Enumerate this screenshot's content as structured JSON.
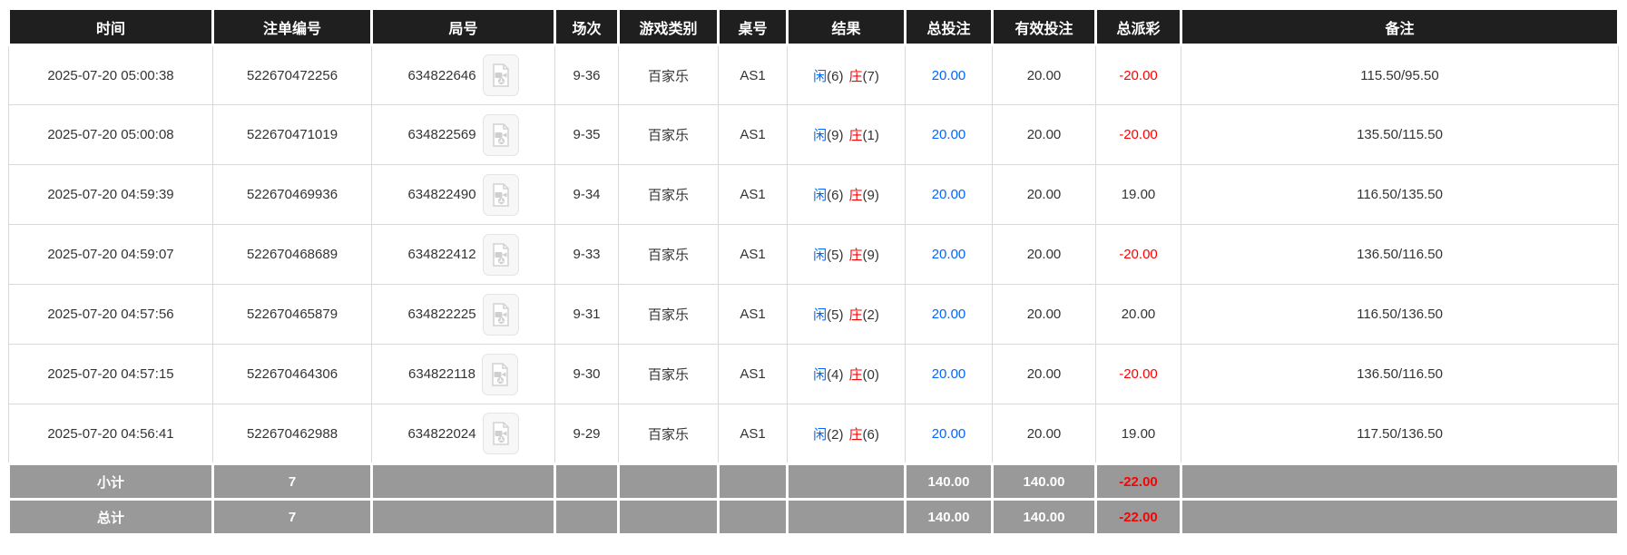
{
  "colors": {
    "header_bg": "#1f1f1f",
    "footer_bg": "#999999",
    "bet_blue": "#0066ff",
    "loss_red": "#ff0000"
  },
  "icons": {
    "round_video": "video-replay-icon"
  },
  "table": {
    "columns": [
      "时间",
      "注单编号",
      "局号",
      "场次",
      "游戏类别",
      "桌号",
      "结果",
      "总投注",
      "有效投注",
      "总派彩",
      "备注"
    ],
    "result_labels": {
      "player": "闲",
      "banker": "庄"
    },
    "rows": [
      {
        "time": "2025-07-20 05:00:38",
        "bet_no": "522670472256",
        "round_no": "634822646",
        "session": "9-36",
        "game": "百家乐",
        "table_no": "AS1",
        "player": "(6)",
        "banker": "(7)",
        "total_bet": "20.00",
        "valid_bet": "20.00",
        "payout": "-20.00",
        "remark": "115.50/95.50"
      },
      {
        "time": "2025-07-20 05:00:08",
        "bet_no": "522670471019",
        "round_no": "634822569",
        "session": "9-35",
        "game": "百家乐",
        "table_no": "AS1",
        "player": "(9)",
        "banker": "(1)",
        "total_bet": "20.00",
        "valid_bet": "20.00",
        "payout": "-20.00",
        "remark": "135.50/115.50"
      },
      {
        "time": "2025-07-20 04:59:39",
        "bet_no": "522670469936",
        "round_no": "634822490",
        "session": "9-34",
        "game": "百家乐",
        "table_no": "AS1",
        "player": "(6)",
        "banker": "(9)",
        "total_bet": "20.00",
        "valid_bet": "20.00",
        "payout": "19.00",
        "remark": "116.50/135.50"
      },
      {
        "time": "2025-07-20 04:59:07",
        "bet_no": "522670468689",
        "round_no": "634822412",
        "session": "9-33",
        "game": "百家乐",
        "table_no": "AS1",
        "player": "(5)",
        "banker": "(9)",
        "total_bet": "20.00",
        "valid_bet": "20.00",
        "payout": "-20.00",
        "remark": "136.50/116.50"
      },
      {
        "time": "2025-07-20 04:57:56",
        "bet_no": "522670465879",
        "round_no": "634822225",
        "session": "9-31",
        "game": "百家乐",
        "table_no": "AS1",
        "player": "(5)",
        "banker": "(2)",
        "total_bet": "20.00",
        "valid_bet": "20.00",
        "payout": "20.00",
        "remark": "116.50/136.50"
      },
      {
        "time": "2025-07-20 04:57:15",
        "bet_no": "522670464306",
        "round_no": "634822118",
        "session": "9-30",
        "game": "百家乐",
        "table_no": "AS1",
        "player": "(4)",
        "banker": "(0)",
        "total_bet": "20.00",
        "valid_bet": "20.00",
        "payout": "-20.00",
        "remark": "136.50/116.50"
      },
      {
        "time": "2025-07-20 04:56:41",
        "bet_no": "522670462988",
        "round_no": "634822024",
        "session": "9-29",
        "game": "百家乐",
        "table_no": "AS1",
        "player": "(2)",
        "banker": "(6)",
        "total_bet": "20.00",
        "valid_bet": "20.00",
        "payout": "19.00",
        "remark": "117.50/136.50"
      }
    ],
    "footer": [
      {
        "label": "小计",
        "count": "7",
        "total_bet": "140.00",
        "valid_bet": "140.00",
        "payout": "-22.00"
      },
      {
        "label": "总计",
        "count": "7",
        "total_bet": "140.00",
        "valid_bet": "140.00",
        "payout": "-22.00"
      }
    ]
  }
}
